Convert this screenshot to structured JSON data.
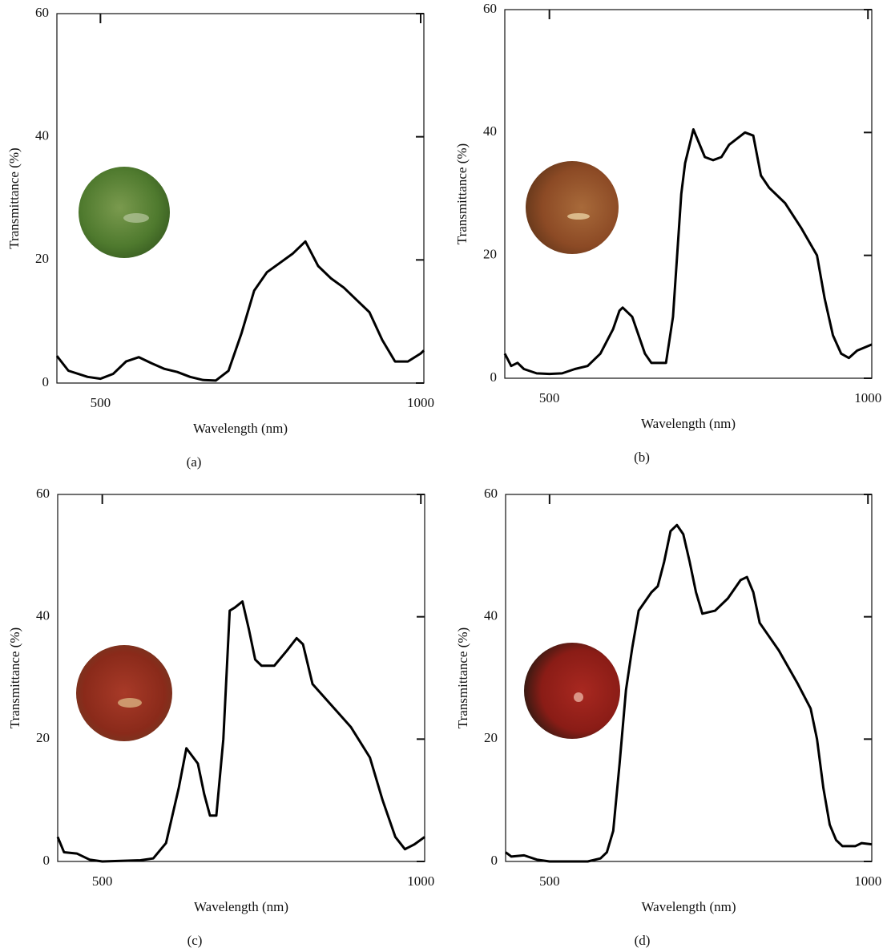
{
  "chart_data": [
    {
      "type": "line",
      "caption": "(a)",
      "xlabel": "Wavelength (nm)",
      "ylabel": "Transmittance (%)",
      "color": "#000000",
      "xlim": [
        432,
        1005
      ],
      "ylim": [
        0,
        60
      ],
      "xticks": [
        500,
        1000
      ],
      "yticks": [
        0,
        20,
        40,
        60
      ],
      "x": [
        432,
        450,
        480,
        500,
        520,
        540,
        560,
        580,
        600,
        620,
        640,
        660,
        680,
        700,
        720,
        740,
        760,
        780,
        800,
        820,
        840,
        860,
        880,
        900,
        920,
        940,
        960,
        980,
        1000,
        1005
      ],
      "values": [
        4.4,
        2,
        1,
        0.7,
        1.5,
        3.5,
        4.2,
        3.2,
        2.3,
        1.8,
        1,
        0.5,
        0.4,
        2,
        8,
        15,
        18,
        19.5,
        21,
        23,
        19,
        17,
        15.5,
        13.5,
        11.5,
        7,
        3.5,
        3.5,
        4.8,
        5.3
      ]
    },
    {
      "type": "line",
      "caption": "(b)",
      "xlabel": "Wavelength (nm)",
      "ylabel": "Transmittance (%)",
      "color": "#000000",
      "xlim": [
        430,
        1006
      ],
      "ylim": [
        0,
        60
      ],
      "xticks": [
        500,
        1000
      ],
      "yticks": [
        0,
        20,
        40,
        60
      ],
      "x": [
        430,
        440,
        450,
        460,
        480,
        500,
        520,
        540,
        560,
        580,
        600,
        610,
        615,
        630,
        640,
        650,
        660,
        683,
        694,
        707,
        713,
        726,
        732,
        744,
        757,
        770,
        782,
        807,
        820,
        832,
        845,
        870,
        895,
        920,
        932,
        945,
        958,
        970,
        983,
        1006
      ],
      "values": [
        4,
        2,
        2.5,
        1.5,
        0.8,
        0.7,
        0.8,
        1.5,
        2,
        4,
        8,
        11,
        11.5,
        10,
        7,
        4,
        2.5,
        2.5,
        10,
        30,
        35,
        40.5,
        39,
        36,
        35.5,
        36,
        38,
        40,
        39.5,
        33,
        31,
        28.5,
        24.5,
        20,
        13,
        7,
        4,
        3.3,
        4.5,
        5.5
      ]
    },
    {
      "type": "line",
      "caption": "(c)",
      "xlabel": "Wavelength (nm)",
      "ylabel": "Transmittance (%)",
      "color": "#000000",
      "xlim": [
        430,
        1006
      ],
      "ylim": [
        0,
        60
      ],
      "xticks": [
        500,
        1000
      ],
      "yticks": [
        0,
        20,
        40,
        60
      ],
      "x": [
        430,
        440,
        460,
        480,
        500,
        560,
        580,
        600,
        620,
        632,
        650,
        660,
        669,
        679,
        690,
        700,
        708,
        720,
        730,
        740,
        750,
        770,
        790,
        805,
        815,
        830,
        860,
        890,
        920,
        940,
        960,
        975,
        990,
        1006
      ],
      "values": [
        4,
        1.5,
        1.3,
        0.3,
        0,
        0.2,
        0.5,
        3,
        12,
        18.5,
        16,
        11,
        7.5,
        7.5,
        20,
        41,
        41.5,
        42.5,
        38,
        33,
        32,
        32,
        34.5,
        36.5,
        35.5,
        29,
        25.5,
        22,
        17,
        10,
        4,
        2,
        2.8,
        4
      ]
    },
    {
      "type": "line",
      "caption": "(d)",
      "xlabel": "Wavelength (nm)",
      "ylabel": "Transmittance (%)",
      "color": "#000000",
      "xlim": [
        431,
        1006
      ],
      "ylim": [
        0,
        60
      ],
      "xticks": [
        500,
        1000
      ],
      "yticks": [
        0,
        20,
        40,
        60
      ],
      "x": [
        431,
        440,
        460,
        480,
        500,
        560,
        580,
        590,
        600,
        610,
        620,
        630,
        640,
        660,
        670,
        680,
        690,
        700,
        710,
        720,
        730,
        740,
        760,
        780,
        800,
        810,
        820,
        830,
        860,
        890,
        910,
        920,
        930,
        940,
        950,
        960,
        980,
        990,
        1006
      ],
      "values": [
        1.5,
        0.8,
        1,
        0.3,
        0,
        0,
        0.5,
        1.5,
        5,
        16,
        28,
        35,
        41,
        44,
        45,
        49,
        54,
        55,
        53.5,
        49,
        44,
        40.5,
        41,
        43,
        46,
        46.5,
        44,
        39,
        34.5,
        29,
        25,
        20,
        12,
        6,
        3.5,
        2.5,
        2.5,
        3,
        2.8
      ]
    }
  ]
}
